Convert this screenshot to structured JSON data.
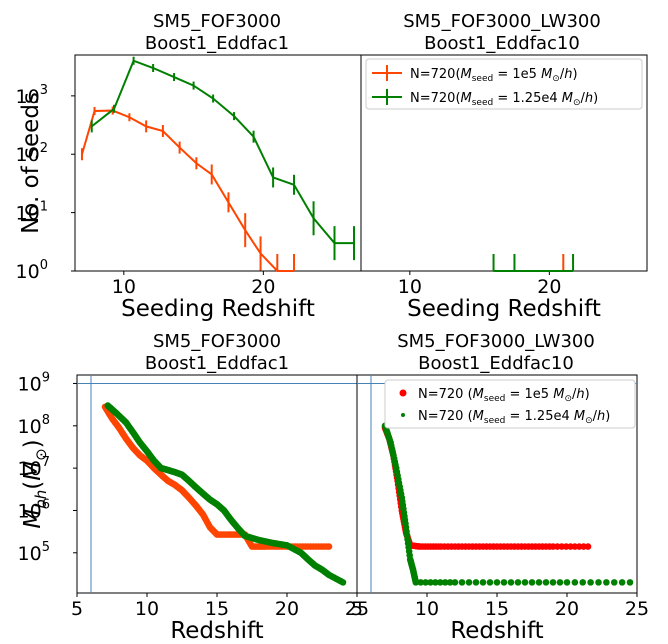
{
  "chart_data": [
    {
      "type": "line",
      "title": [
        "SM5_FOF3000",
        "Boost1_Eddfac1"
      ],
      "xlabel": "Seeding Redshift",
      "ylabel": "No. of seeds",
      "xlim": [
        6.5,
        27
      ],
      "ylim": [
        1,
        5000
      ],
      "yscale": "log",
      "xticks": [
        10,
        20
      ],
      "yticks": [
        {
          "v": 1,
          "label": "10",
          "exp": "0"
        },
        {
          "v": 10,
          "label": "10",
          "exp": "1"
        },
        {
          "v": 100,
          "label": "10",
          "exp": "2"
        },
        {
          "v": 1000,
          "label": "10",
          "exp": "3"
        }
      ],
      "series": [
        {
          "color": "#ff4500",
          "x": [
            7.0,
            7.9,
            9.2,
            10.4,
            11.6,
            12.8,
            14.0,
            15.2,
            16.3,
            17.5,
            18.7,
            19.8,
            21.0,
            22.2
          ],
          "y": [
            100,
            550,
            560,
            430,
            300,
            250,
            130,
            70,
            45,
            15,
            5,
            2,
            1,
            1
          ]
        },
        {
          "color": "#008000",
          "x": [
            7.7,
            9.3,
            10.7,
            12.1,
            13.6,
            15.0,
            16.4,
            17.9,
            19.3,
            20.7,
            22.2,
            23.6,
            25.1,
            26.5
          ],
          "y": [
            300,
            600,
            4000,
            3000,
            2100,
            1500,
            900,
            450,
            200,
            40,
            30,
            8,
            3,
            3
          ]
        }
      ]
    },
    {
      "type": "line",
      "title": [
        "SM5_FOF3000_LW300",
        "Boost1_Eddfac10"
      ],
      "xlabel": "Seeding Redshift",
      "ylabel": "",
      "xlim": [
        6.5,
        27
      ],
      "ylim": [
        1,
        5000
      ],
      "yscale": "log",
      "xticks": [
        10,
        20
      ],
      "legend": {
        "location": "top-right",
        "entries": [
          {
            "color": "#ff4500",
            "label": "N=720",
            "mass": "1e5"
          },
          {
            "color": "#008000",
            "label": "N=720",
            "mass": "1.25e4"
          }
        ]
      },
      "series": [
        {
          "color": "#ff4500",
          "x": [
            21.0
          ],
          "y": [
            1
          ]
        },
        {
          "color": "#008000",
          "x": [
            16.0,
            17.5,
            21.7
          ],
          "y": [
            1,
            1,
            1
          ]
        }
      ]
    },
    {
      "type": "scatter",
      "title": [
        "SM5_FOF3000",
        "Boost1_Eddfac1"
      ],
      "xlabel": "Redshift",
      "ylabel": "M_bh(M_⊙)",
      "xlim": [
        5,
        25
      ],
      "ylim": [
        10000,
        1500000000
      ],
      "yscale": "log",
      "xticks": [
        5,
        10,
        15,
        20,
        25
      ],
      "yticks": [
        {
          "v": 100000,
          "label": "10",
          "exp": "5"
        },
        {
          "v": 1000000,
          "label": "10",
          "exp": "6"
        },
        {
          "v": 10000000,
          "label": "10",
          "exp": "7"
        },
        {
          "v": 100000000,
          "label": "10",
          "exp": "8"
        },
        {
          "v": 1000000000,
          "label": "10",
          "exp": "9"
        }
      ],
      "hline": 1000000000,
      "vline": 6,
      "series": [
        {
          "color": "#ff4500",
          "points": [
            [
              7.0,
              280000000
            ],
            [
              7.5,
              150000000
            ],
            [
              8.0,
              90000000
            ],
            [
              8.5,
              50000000
            ],
            [
              9.0,
              30000000
            ],
            [
              9.5,
              20000000
            ],
            [
              10.0,
              15000000
            ],
            [
              10.5,
              10000000
            ],
            [
              11.0,
              7000000
            ],
            [
              11.5,
              5000000
            ],
            [
              12.0,
              4000000
            ],
            [
              12.5,
              3000000
            ],
            [
              13.0,
              2000000
            ],
            [
              13.5,
              1300000
            ],
            [
              14.0,
              800000
            ],
            [
              14.5,
              400000
            ],
            [
              15.0,
              270000
            ],
            [
              16.0,
              270000
            ],
            [
              17.0,
              270000
            ],
            [
              17.5,
              140000
            ],
            [
              18.5,
              140000
            ],
            [
              20.0,
              140000
            ],
            [
              21.5,
              140000
            ],
            [
              23.0,
              140000
            ]
          ]
        },
        {
          "color": "#008000",
          "points": [
            [
              7.2,
              300000000
            ],
            [
              7.8,
              200000000
            ],
            [
              8.5,
              120000000
            ],
            [
              9.0,
              70000000
            ],
            [
              9.5,
              40000000
            ],
            [
              10.0,
              25000000
            ],
            [
              10.5,
              15000000
            ],
            [
              11.0,
              10000000
            ],
            [
              11.5,
              9000000
            ],
            [
              12.0,
              8000000
            ],
            [
              12.5,
              7000000
            ],
            [
              13.0,
              5000000
            ],
            [
              13.5,
              3500000
            ],
            [
              14.0,
              2500000
            ],
            [
              14.5,
              1800000
            ],
            [
              15.0,
              1400000
            ],
            [
              15.5,
              1000000
            ],
            [
              16.0,
              600000
            ],
            [
              16.5,
              380000
            ],
            [
              17.0,
              250000
            ],
            [
              18.0,
              200000
            ],
            [
              19.0,
              170000
            ],
            [
              20.0,
              150000
            ],
            [
              21.0,
              100000
            ],
            [
              21.5,
              70000
            ],
            [
              22.0,
              50000
            ],
            [
              22.5,
              40000
            ],
            [
              23.0,
              30000
            ],
            [
              24.0,
              20000
            ]
          ]
        }
      ]
    },
    {
      "type": "scatter",
      "title": [
        "SM5_FOF3000_LW300",
        "Boost1_Eddfac10"
      ],
      "xlabel": "Redshift",
      "ylabel": "",
      "xlim": [
        5,
        25
      ],
      "ylim": [
        10000,
        1500000000
      ],
      "yscale": "log",
      "xticks": [
        5,
        10,
        15,
        20,
        25
      ],
      "hline": 1000000000,
      "vline": 6,
      "legend": {
        "location": "top-right",
        "entries": [
          {
            "color": "#ff0000",
            "label": "N=720",
            "mass": "1e5"
          },
          {
            "color": "#008000",
            "label": "N=720",
            "mass": "1.25e4"
          }
        ]
      },
      "series": [
        {
          "color": "#ff0000",
          "points": [
            [
              7.0,
              90000000
            ],
            [
              7.3,
              50000000
            ],
            [
              7.6,
              20000000
            ],
            [
              7.9,
              5000000
            ],
            [
              8.2,
              1000000
            ],
            [
              8.5,
              300000
            ],
            [
              8.8,
              150000
            ],
            [
              9.5,
              140000
            ],
            [
              11.0,
              140000
            ],
            [
              13.0,
              140000
            ],
            [
              15.0,
              140000
            ],
            [
              17.0,
              140000
            ],
            [
              19.0,
              140000
            ],
            [
              21.5,
              140000
            ]
          ]
        },
        {
          "color": "#008000",
          "points": [
            [
              7.0,
              100000000
            ],
            [
              7.4,
              40000000
            ],
            [
              7.8,
              10000000
            ],
            [
              8.2,
              2000000
            ],
            [
              8.5,
              400000
            ],
            [
              8.8,
              70000
            ],
            [
              9.0,
              40000
            ],
            [
              9.2,
              20000
            ],
            [
              12.0,
              20000
            ],
            [
              16.0,
              20000
            ],
            [
              20.0,
              20000
            ],
            [
              24.5,
              20000
            ]
          ]
        }
      ]
    }
  ]
}
